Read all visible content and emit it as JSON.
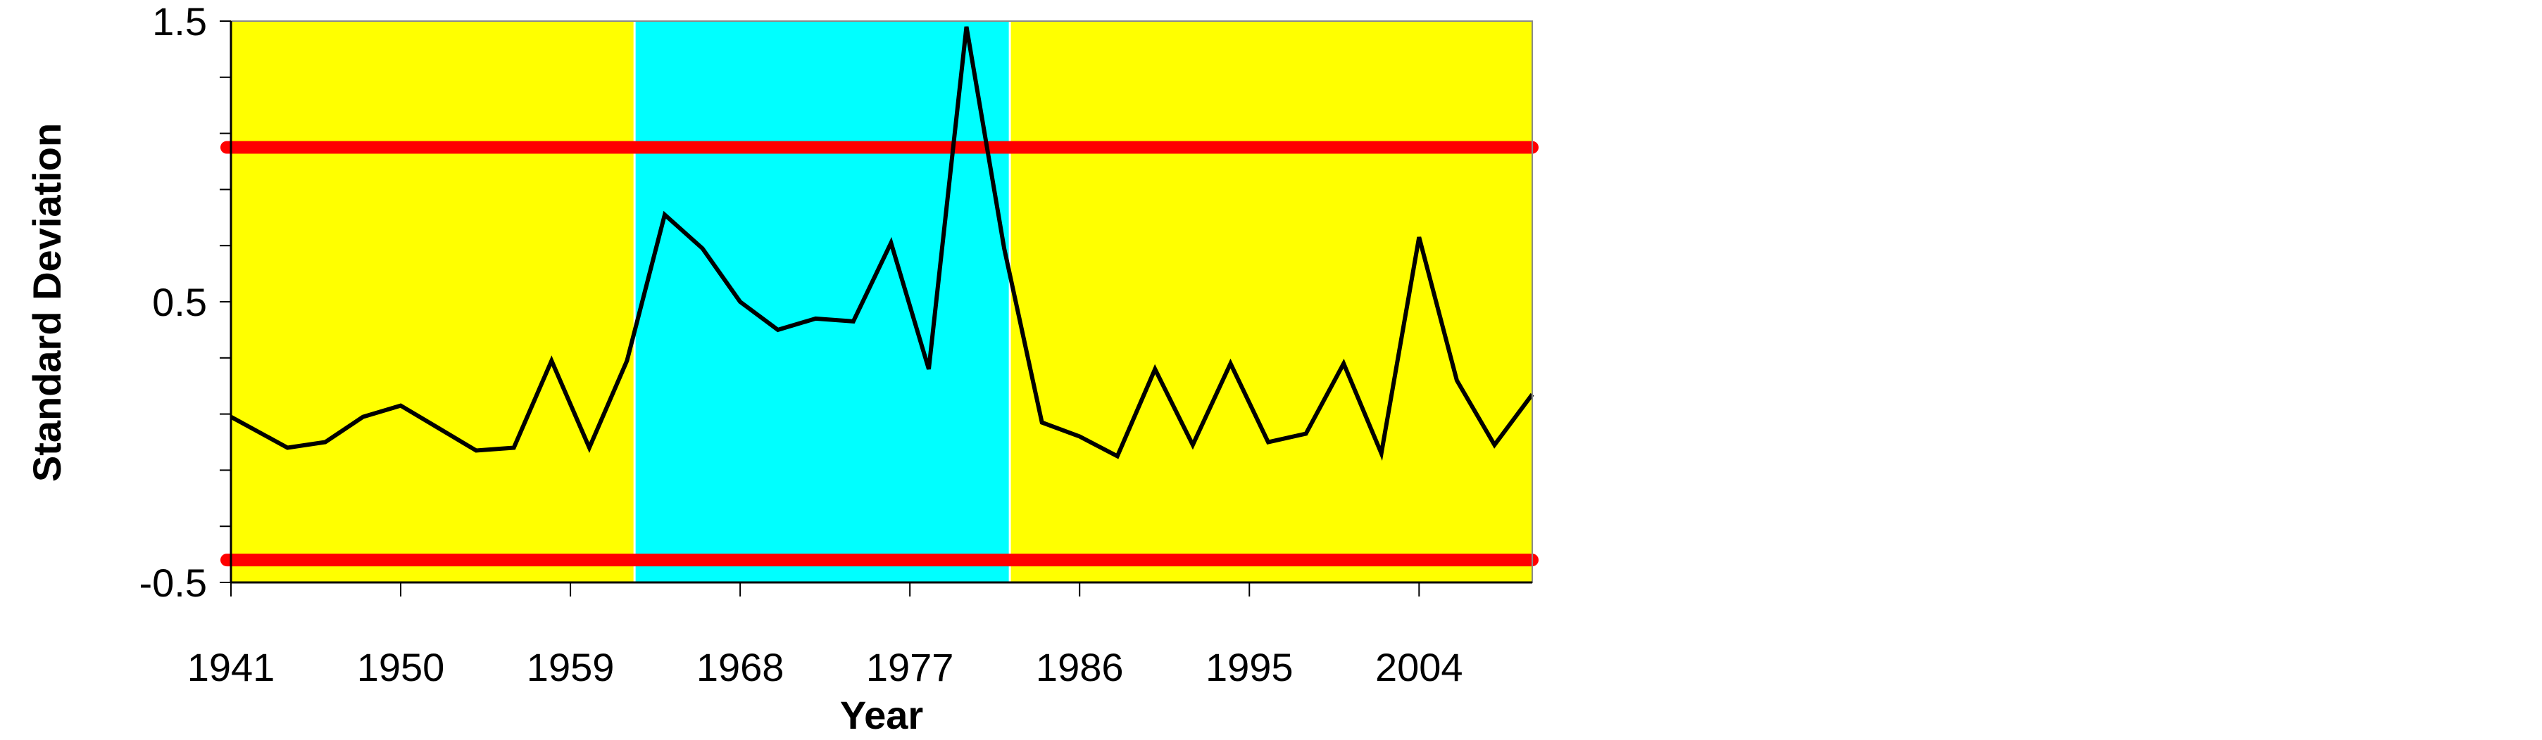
{
  "chart_data": {
    "type": "line",
    "title": "",
    "xlabel": "Year",
    "ylabel": "Standard Deviation",
    "xlim": [
      1941,
      2010
    ],
    "ylim": [
      -0.5,
      1.5
    ],
    "x_ticks": [
      1941,
      1950,
      1959,
      1968,
      1977,
      1986,
      1995,
      2004
    ],
    "y_tick_labels": [
      -0.5,
      0.5,
      1.5
    ],
    "y_minor_step": 0.2,
    "background_bands": [
      {
        "from": 1941,
        "to": 1962.4,
        "color": "#ffff00"
      },
      {
        "from": 1962.4,
        "to": 1982.3,
        "color": "#00ffff"
      },
      {
        "from": 1982.3,
        "to": 2010,
        "color": "#ffff00"
      }
    ],
    "reference_lines": [
      {
        "y": 1.05,
        "color": "#ff0000"
      },
      {
        "y": -0.42,
        "color": "#ff0000"
      }
    ],
    "series": [
      {
        "color": "#000000",
        "x": [
          1941,
          1944,
          1946,
          1948,
          1950,
          1952,
          1954,
          1956,
          1958,
          1960,
          1962,
          1964,
          1966,
          1968,
          1970,
          1972,
          1974,
          1976,
          1978,
          1980,
          1982,
          1984,
          1986,
          1988,
          1990,
          1992,
          1994,
          1996,
          1998,
          2000,
          2002,
          2004,
          2006,
          2008,
          2010
        ],
        "y": [
          0.09,
          -0.02,
          0.0,
          0.09,
          0.13,
          0.05,
          -0.03,
          -0.02,
          0.29,
          -0.02,
          0.29,
          0.81,
          0.69,
          0.5,
          0.4,
          0.44,
          0.43,
          0.71,
          0.26,
          1.48,
          0.69,
          0.07,
          0.02,
          -0.05,
          0.26,
          -0.01,
          0.28,
          0.0,
          0.03,
          0.28,
          -0.04,
          0.73,
          0.22,
          -0.01,
          0.17
        ]
      }
    ]
  }
}
